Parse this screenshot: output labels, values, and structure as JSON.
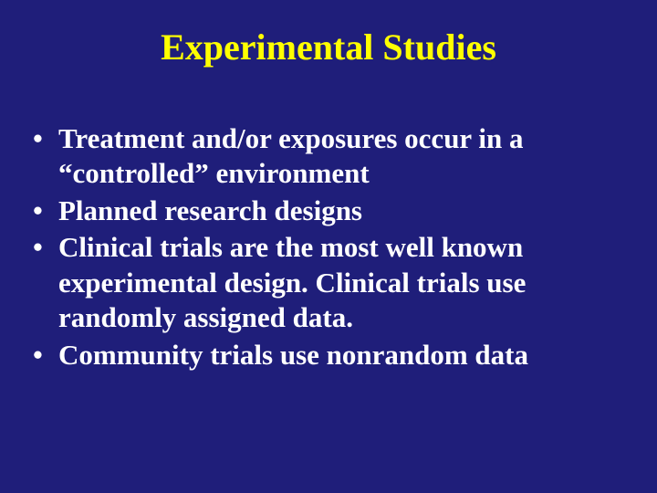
{
  "slide": {
    "background_color": "#1f1e7a",
    "title": {
      "text": "Experimental Studies",
      "color": "#ffff00",
      "font_size_pt": 40,
      "font_weight": "bold",
      "font_family": "Times New Roman",
      "align": "center"
    },
    "bullets": {
      "color": "#ffffff",
      "font_size_pt": 31,
      "font_weight": "bold",
      "font_family": "Times New Roman",
      "items": [
        "Treatment and/or exposures occur in a “controlled” environment",
        "Planned research designs",
        "Clinical trials are the most well known experimental design.  Clinical trials use randomly assigned data.",
        "Community trials use nonrandom data"
      ]
    }
  }
}
